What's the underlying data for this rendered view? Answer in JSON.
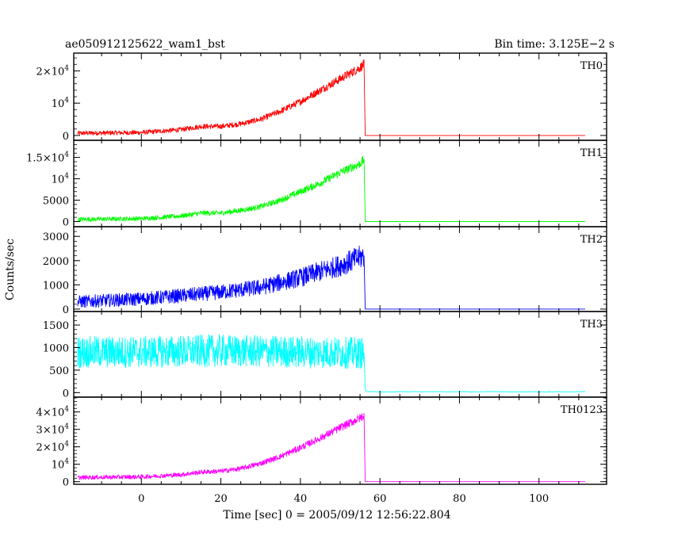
{
  "chart_data": {
    "type": "line",
    "title": "ae050912125622_wam1_bst",
    "subtitle": "Bin time: 3.125E−2 s",
    "xlabel": "Time [sec] 0 = 2005/09/12 12:56:22.804",
    "ylabel": "Counts/sec",
    "xlim": [
      -17,
      117
    ],
    "x_ticks": [
      0,
      20,
      40,
      60,
      80,
      100
    ],
    "x_tick_labels": [
      "0",
      "20",
      "40",
      "60",
      "80",
      "100"
    ],
    "x_start": -16,
    "burst_end": 56,
    "x_end": 112,
    "panels": [
      {
        "name": "TH0",
        "color": "#ff0000",
        "ylim": [
          -1500,
          25500
        ],
        "y_ticks": [
          0,
          10000,
          20000
        ],
        "y_tick_labels": [
          {
            "m": "0",
            "e": ""
          },
          {
            "m": "10",
            "e": "4"
          },
          {
            "m": "2×10",
            "e": "4"
          }
        ],
        "envelope": [
          [
            -16,
            700
          ],
          [
            0,
            900
          ],
          [
            10,
            1800
          ],
          [
            15,
            2800
          ],
          [
            20,
            2800
          ],
          [
            25,
            3600
          ],
          [
            30,
            5000
          ],
          [
            35,
            7500
          ],
          [
            40,
            10500
          ],
          [
            45,
            14000
          ],
          [
            50,
            17500
          ],
          [
            55,
            21000
          ],
          [
            56,
            22000
          ]
        ],
        "noise": 1500,
        "tail_level": 0
      },
      {
        "name": "TH1",
        "color": "#00ff00",
        "ylim": [
          -1200,
          19000
        ],
        "y_ticks": [
          0,
          5000,
          10000,
          15000
        ],
        "y_tick_labels": [
          {
            "m": "0",
            "e": ""
          },
          {
            "m": "5000",
            "e": ""
          },
          {
            "m": "10",
            "e": "4"
          },
          {
            "m": "1.5×10",
            "e": "4"
          }
        ],
        "envelope": [
          [
            -16,
            500
          ],
          [
            0,
            700
          ],
          [
            10,
            1300
          ],
          [
            15,
            2000
          ],
          [
            20,
            2000
          ],
          [
            25,
            2600
          ],
          [
            30,
            3500
          ],
          [
            35,
            5000
          ],
          [
            40,
            7000
          ],
          [
            45,
            9000
          ],
          [
            50,
            11500
          ],
          [
            55,
            13500
          ],
          [
            56,
            14500
          ]
        ],
        "noise": 1100,
        "tail_level": 0
      },
      {
        "name": "TH2",
        "color": "#0000ff",
        "ylim": [
          -100,
          3400
        ],
        "y_ticks": [
          0,
          1000,
          2000,
          3000
        ],
        "y_tick_labels": [
          {
            "m": "0",
            "e": ""
          },
          {
            "m": "1000",
            "e": ""
          },
          {
            "m": "2000",
            "e": ""
          },
          {
            "m": "3000",
            "e": ""
          }
        ],
        "envelope": [
          [
            -16,
            300
          ],
          [
            0,
            420
          ],
          [
            10,
            550
          ],
          [
            20,
            700
          ],
          [
            30,
            900
          ],
          [
            40,
            1300
          ],
          [
            50,
            1800
          ],
          [
            56,
            2200
          ]
        ],
        "noise": 500,
        "tail_level": 0
      },
      {
        "name": "TH3",
        "color": "#00ffff",
        "ylim": [
          -100,
          1800
        ],
        "y_ticks": [
          0,
          500,
          1000,
          1500
        ],
        "y_tick_labels": [
          {
            "m": "0",
            "e": ""
          },
          {
            "m": "500",
            "e": ""
          },
          {
            "m": "1000",
            "e": ""
          },
          {
            "m": "1500",
            "e": ""
          }
        ],
        "envelope": [
          [
            -16,
            900
          ],
          [
            0,
            900
          ],
          [
            20,
            930
          ],
          [
            40,
            900
          ],
          [
            56,
            880
          ]
        ],
        "noise": 350,
        "tail_level": 20
      },
      {
        "name": "TH0123",
        "color": "#ff00ff",
        "ylim": [
          -1500,
          48500
        ],
        "y_ticks": [
          0,
          10000,
          20000,
          30000,
          40000
        ],
        "y_tick_labels": [
          {
            "m": "0",
            "e": ""
          },
          {
            "m": "10",
            "e": "4"
          },
          {
            "m": "2×10",
            "e": "4"
          },
          {
            "m": "3×10",
            "e": "4"
          },
          {
            "m": "4×10",
            "e": "4"
          }
        ],
        "envelope": [
          [
            -16,
            2400
          ],
          [
            0,
            2800
          ],
          [
            10,
            4000
          ],
          [
            15,
            5500
          ],
          [
            20,
            6000
          ],
          [
            25,
            7500
          ],
          [
            30,
            10500
          ],
          [
            35,
            14500
          ],
          [
            40,
            19500
          ],
          [
            45,
            25000
          ],
          [
            50,
            31000
          ],
          [
            55,
            36500
          ],
          [
            56,
            38000
          ]
        ],
        "noise": 2500,
        "tail_level": 0
      }
    ]
  }
}
